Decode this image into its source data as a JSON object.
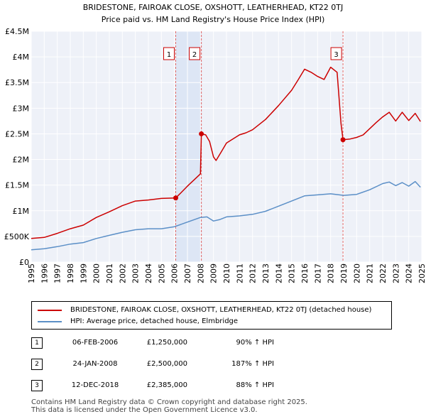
{
  "chart_data": {
    "type": "line",
    "title": "BRIDESTONE, FAIROAK CLOSE, OXSHOTT, LEATHERHEAD, KT22 0TJ",
    "subtitle": "Price paid vs. HM Land Registry's House Price Index (HPI)",
    "xlim": [
      1995,
      2025
    ],
    "ylim": [
      0,
      4500000
    ],
    "x_ticks": [
      "1995",
      "1996",
      "1997",
      "1998",
      "1999",
      "2000",
      "2001",
      "2002",
      "2003",
      "2004",
      "2005",
      "2006",
      "2007",
      "2008",
      "2009",
      "2010",
      "2011",
      "2012",
      "2013",
      "2014",
      "2015",
      "2016",
      "2017",
      "2018",
      "2019",
      "2020",
      "2021",
      "2022",
      "2023",
      "2024",
      "2025"
    ],
    "y_ticks": [
      {
        "value": 0,
        "label": "£0"
      },
      {
        "value": 500000,
        "label": "£500K"
      },
      {
        "value": 1000000,
        "label": "£1M"
      },
      {
        "value": 1500000,
        "label": "£1.5M"
      },
      {
        "value": 2000000,
        "label": "£2M"
      },
      {
        "value": 2500000,
        "label": "£2.5M"
      },
      {
        "value": 3000000,
        "label": "£3M"
      },
      {
        "value": 3500000,
        "label": "£3.5M"
      },
      {
        "value": 4000000,
        "label": "£4M"
      },
      {
        "value": 4500000,
        "label": "£4.5M"
      }
    ],
    "series": [
      {
        "name": "BRIDESTONE, FAIROAK CLOSE, OXSHOTT, LEATHERHEAD, KT22 0TJ (detached house)",
        "color": "#cc0000",
        "points": [
          [
            1995.0,
            460000
          ],
          [
            1996.0,
            480000
          ],
          [
            1997.0,
            560000
          ],
          [
            1998.0,
            650000
          ],
          [
            1999.0,
            720000
          ],
          [
            2000.0,
            870000
          ],
          [
            2001.0,
            980000
          ],
          [
            2002.0,
            1100000
          ],
          [
            2003.0,
            1190000
          ],
          [
            2004.0,
            1210000
          ],
          [
            2005.0,
            1240000
          ],
          [
            2006.1,
            1250000
          ],
          [
            2006.5,
            1350000
          ],
          [
            2007.0,
            1480000
          ],
          [
            2007.5,
            1600000
          ],
          [
            2008.0,
            1720000
          ],
          [
            2008.07,
            2500000
          ],
          [
            2008.4,
            2480000
          ],
          [
            2008.7,
            2350000
          ],
          [
            2009.0,
            2050000
          ],
          [
            2009.2,
            1980000
          ],
          [
            2009.6,
            2150000
          ],
          [
            2010.0,
            2320000
          ],
          [
            2011.0,
            2480000
          ],
          [
            2011.5,
            2520000
          ],
          [
            2012.0,
            2580000
          ],
          [
            2013.0,
            2780000
          ],
          [
            2014.0,
            3050000
          ],
          [
            2015.0,
            3350000
          ],
          [
            2015.5,
            3550000
          ],
          [
            2016.0,
            3760000
          ],
          [
            2016.5,
            3700000
          ],
          [
            2017.0,
            3620000
          ],
          [
            2017.5,
            3560000
          ],
          [
            2018.0,
            3800000
          ],
          [
            2018.5,
            3700000
          ],
          [
            2018.8,
            2700000
          ],
          [
            2018.95,
            2385000
          ],
          [
            2019.5,
            2400000
          ],
          [
            2020.0,
            2430000
          ],
          [
            2020.5,
            2480000
          ],
          [
            2021.0,
            2600000
          ],
          [
            2021.5,
            2720000
          ],
          [
            2022.0,
            2830000
          ],
          [
            2022.5,
            2920000
          ],
          [
            2023.0,
            2750000
          ],
          [
            2023.5,
            2920000
          ],
          [
            2024.0,
            2760000
          ],
          [
            2024.5,
            2900000
          ],
          [
            2024.9,
            2740000
          ]
        ]
      },
      {
        "name": "HPI: Average price, detached house, Elmbridge",
        "color": "#5b8fc7",
        "points": [
          [
            1995.0,
            240000
          ],
          [
            1996.0,
            260000
          ],
          [
            1997.0,
            300000
          ],
          [
            1998.0,
            350000
          ],
          [
            1999.0,
            380000
          ],
          [
            2000.0,
            460000
          ],
          [
            2001.0,
            520000
          ],
          [
            2002.0,
            580000
          ],
          [
            2003.0,
            630000
          ],
          [
            2004.0,
            650000
          ],
          [
            2005.0,
            650000
          ],
          [
            2006.0,
            690000
          ],
          [
            2007.0,
            780000
          ],
          [
            2008.0,
            870000
          ],
          [
            2008.5,
            880000
          ],
          [
            2009.0,
            800000
          ],
          [
            2009.5,
            830000
          ],
          [
            2010.0,
            880000
          ],
          [
            2011.0,
            900000
          ],
          [
            2012.0,
            930000
          ],
          [
            2013.0,
            990000
          ],
          [
            2014.0,
            1090000
          ],
          [
            2015.0,
            1190000
          ],
          [
            2016.0,
            1290000
          ],
          [
            2017.0,
            1310000
          ],
          [
            2018.0,
            1330000
          ],
          [
            2019.0,
            1300000
          ],
          [
            2020.0,
            1320000
          ],
          [
            2021.0,
            1410000
          ],
          [
            2022.0,
            1530000
          ],
          [
            2022.5,
            1560000
          ],
          [
            2023.0,
            1490000
          ],
          [
            2023.5,
            1550000
          ],
          [
            2024.0,
            1480000
          ],
          [
            2024.5,
            1570000
          ],
          [
            2024.9,
            1460000
          ]
        ]
      }
    ],
    "sales": [
      {
        "num": "1",
        "year": 2006.1,
        "value": 1250000
      },
      {
        "num": "2",
        "year": 2008.07,
        "value": 2500000
      },
      {
        "num": "3",
        "year": 2018.95,
        "value": 2385000
      }
    ],
    "shaded_region": {
      "from": 2006.1,
      "to": 2008.07
    }
  },
  "legend": {
    "items": [
      {
        "label": "BRIDESTONE, FAIROAK CLOSE, OXSHOTT, LEATHERHEAD, KT22 0TJ (detached house)",
        "color": "#cc0000"
      },
      {
        "label": "HPI: Average price, detached house, Elmbridge",
        "color": "#5b8fc7"
      }
    ]
  },
  "sales_table": [
    {
      "num": "1",
      "date": "06-FEB-2006",
      "price": "£1,250,000",
      "hpi": "90% ↑ HPI"
    },
    {
      "num": "2",
      "date": "24-JAN-2008",
      "price": "£2,500,000",
      "hpi": "187% ↑ HPI"
    },
    {
      "num": "3",
      "date": "12-DEC-2018",
      "price": "£2,385,000",
      "hpi": "88% ↑ HPI"
    }
  ],
  "footer": {
    "line1": "Contains HM Land Registry data © Crown copyright and database right 2025.",
    "line2": "This data is licensed under the Open Government Licence v3.0."
  }
}
